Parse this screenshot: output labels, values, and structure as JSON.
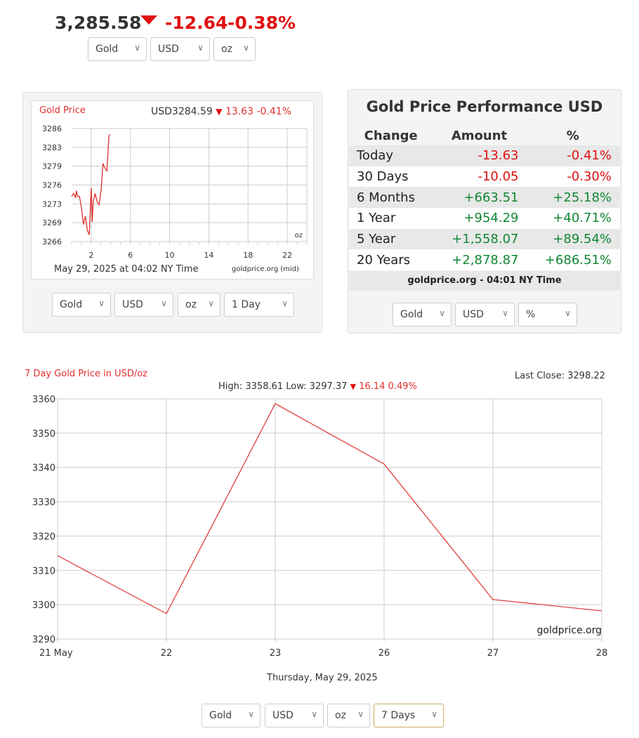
{
  "ticker": {
    "price": "3,285.58",
    "change": "-12.64",
    "percent": "-0.38%",
    "selects": [
      "Gold",
      "USD",
      "oz"
    ]
  },
  "mini_chart": {
    "title": "Gold Price",
    "quote": "USD3284.59",
    "change": "13.63 -0.41%",
    "unit": "oz",
    "footer": "May 29, 2025 at 04:02 NY Time",
    "source": "goldprice.org (mid)",
    "selects": [
      "Gold",
      "USD",
      "oz",
      "1 Day"
    ]
  },
  "performance": {
    "title": "Gold Price Performance USD",
    "headers": [
      "Change",
      "Amount",
      "%"
    ],
    "rows": [
      [
        "Today",
        "-13.63",
        "-0.41%"
      ],
      [
        "30 Days",
        "-10.05",
        "-0.30%"
      ],
      [
        "6 Months",
        "+663.51",
        "+25.18%"
      ],
      [
        "1 Year",
        "+954.29",
        "+40.71%"
      ],
      [
        "5 Year",
        "+1,558.07",
        "+89.54%"
      ],
      [
        "20 Years",
        "+2,878.87",
        "+686.51%"
      ]
    ],
    "footer": "goldprice.org - 04:01 NY Time",
    "selects": [
      "Gold",
      "USD",
      "%"
    ]
  },
  "chart_data": [
    {
      "type": "line",
      "title": "Gold Price",
      "ylim": [
        3266,
        3286
      ],
      "yticks": [
        "3286",
        "3283",
        "3279",
        "3276",
        "3273",
        "3269",
        "3266"
      ],
      "xlim": [
        0,
        24
      ],
      "xticks": [
        "2",
        "6",
        "10",
        "14",
        "18",
        "22"
      ],
      "x": [
        0,
        0.2,
        0.4,
        0.5,
        0.6,
        0.8,
        1,
        1.2,
        1.4,
        1.6,
        1.8,
        2,
        2.1,
        2.2,
        2.4,
        2.6,
        2.8,
        3,
        3.2,
        3.4,
        3.6,
        3.8,
        3.9
      ],
      "y": [
        3274,
        3274.5,
        3273.8,
        3275,
        3274,
        3274,
        3272,
        3269,
        3270.5,
        3268,
        3267.2,
        3275.5,
        3269.5,
        3273,
        3274.5,
        3273,
        3272.5,
        3275,
        3279.8,
        3279,
        3278.5,
        3284.6,
        3285
      ]
    },
    {
      "type": "line",
      "title": "7 Day Gold Price in USD/oz",
      "last_close": "Last Close: 3298.22",
      "summary": "High: 3358.61 Low: 3297.37",
      "summary_change": "16.14 0.49%",
      "categories": [
        "21 May",
        "22",
        "23",
        "26",
        "27",
        "28"
      ],
      "values": [
        3314.3,
        3297.4,
        3358.6,
        3341.0,
        3301.5,
        3298.2
      ],
      "ylim": [
        3290,
        3360
      ],
      "yticks": [
        "3360",
        "3350",
        "3340",
        "3330",
        "3320",
        "3310",
        "3300",
        "3290"
      ],
      "xlabel": "Thursday, May 29, 2025",
      "watermark": "goldprice.org"
    }
  ],
  "bottom_selects": [
    "Gold",
    "USD",
    "oz",
    "7 Days"
  ],
  "colors": {
    "red": "#e01010",
    "green": "#118833"
  }
}
